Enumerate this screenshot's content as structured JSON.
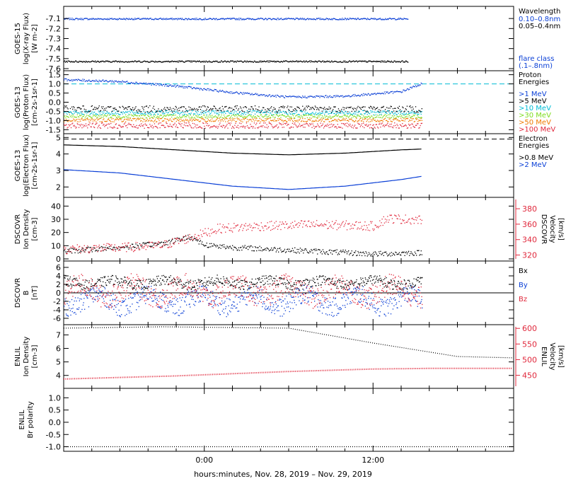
{
  "figure": {
    "xlabel": "hours:minutes, Nov. 28, 2019 – Nov. 29, 2019",
    "x_ticks": [
      "0:00",
      "12:00"
    ]
  },
  "colors": {
    "black": "#000000",
    "blue": "#0a3fd6",
    "cyan": "#00bcd4",
    "green": "#7ddc1f",
    "yellow": "#e8c000",
    "orange": "#f07a00",
    "red": "#e0283c"
  },
  "chart_data": [
    {
      "type": "scatter",
      "panel": "goes15-xray",
      "ylabel_lines": [
        "GOES-15",
        "log(X-ray Flux)",
        "[W m-2]"
      ],
      "yticks": [
        "-7.1",
        "-7.2",
        "-7.3",
        "-7.4",
        "-7.5",
        "-7.6"
      ],
      "ylim": [
        -7.6,
        -7.0
      ],
      "legend_title": "Wavelength",
      "series": [
        {
          "name": "0.10–0.8nm",
          "color": "blue",
          "x_range_h": [
            -10,
            14.5
          ],
          "y_mean": -7.1,
          "noise": 0.008
        },
        {
          "name": "0.05–0.4nm",
          "color": "black",
          "x_range_h": [
            -10,
            14.5
          ],
          "y_mean": -7.525,
          "noise": 0.008
        }
      ],
      "right_note_lines": [
        "flare class",
        "(.1–.8nm)"
      ]
    },
    {
      "type": "scatter",
      "panel": "goes13-proton",
      "ylabel_lines": [
        "GOES-13",
        "log(Proton Flux)",
        "[cm-2s-1sr-1]"
      ],
      "yticks": [
        "1.5",
        "1.0",
        "0.5",
        "0.0",
        "-0.5",
        "-1.0",
        "-1.5"
      ],
      "ylim": [
        -1.6,
        1.6
      ],
      "legend_title_lines": [
        "Proton",
        "Energies"
      ],
      "threshold": 1.0,
      "series": [
        {
          "name": ">1 MeV",
          "color": "blue",
          "x": [
            -10,
            -6,
            -2,
            2,
            6,
            10,
            14,
            15.5
          ],
          "y": [
            1.25,
            1.15,
            0.9,
            0.55,
            0.3,
            0.35,
            0.6,
            1.05
          ]
        },
        {
          "name": ">5 MeV",
          "color": "black",
          "x_range_h": [
            -10,
            15.5
          ],
          "y_mean": -0.35,
          "noise": 0.18
        },
        {
          "name": ">10 MeV",
          "color": "cyan",
          "x_range_h": [
            -10,
            15.5
          ],
          "y_mean": -0.55,
          "noise": 0.12
        },
        {
          "name": ">30 MeV",
          "color": "green",
          "x_range_h": [
            -10,
            15.5
          ],
          "y_mean": -0.75,
          "noise": 0.1
        },
        {
          "name": ">50 MeV",
          "color": "orange",
          "x_range_h": [
            -10,
            15.5
          ],
          "y_mean": -0.95,
          "noise": 0.1
        },
        {
          "name": ">100 MeV",
          "color": "red",
          "x_range_h": [
            -10,
            15.5
          ],
          "y_mean": -1.25,
          "noise": 0.15
        }
      ]
    },
    {
      "type": "line",
      "panel": "goes13-electron",
      "ylabel_lines": [
        "GOES-13",
        "log(Electron Flux)",
        "[cm-2s-1sr-1]"
      ],
      "yticks": [
        "5",
        "4",
        "3",
        "2"
      ],
      "ylim": [
        1.5,
        5.1
      ],
      "legend_title_lines": [
        "Electron",
        "Energies"
      ],
      "threshold": 4.9,
      "series": [
        {
          "name": ">0.8 MeV",
          "color": "black",
          "x": [
            -10,
            -6,
            -2,
            2,
            6,
            10,
            14,
            15.5
          ],
          "y": [
            4.55,
            4.45,
            4.25,
            4.05,
            3.95,
            4.05,
            4.25,
            4.3
          ]
        },
        {
          "name": ">2 MeV",
          "color": "blue",
          "x": [
            -10,
            -6,
            -2,
            2,
            6,
            10,
            14,
            15.5
          ],
          "y": [
            3.05,
            2.85,
            2.45,
            2.05,
            1.85,
            2.05,
            2.45,
            2.65
          ]
        }
      ]
    },
    {
      "type": "scatter",
      "panel": "dscovr-plasma",
      "ylabel_lines": [
        "DSCOVR",
        "Ion Density",
        "[cm-3]"
      ],
      "yticks": [
        "40",
        "30",
        "20",
        "10",
        "0"
      ],
      "ylim": [
        0,
        45
      ],
      "right_label_lines": [
        "DSCOVR",
        "Velocity",
        "[km/s]"
      ],
      "right_yticks": [
        "380",
        "360",
        "340",
        "320"
      ],
      "right_ylim": [
        315,
        392
      ],
      "series": [
        {
          "name": "Ion Density",
          "axis": "left",
          "color": "black",
          "x": [
            -10,
            -6,
            -3,
            -1,
            0,
            2,
            4,
            8,
            12,
            15.5
          ],
          "y": [
            6,
            9,
            12,
            17,
            11,
            9,
            8,
            6,
            4,
            5
          ],
          "noise": 2.0
        },
        {
          "name": "Velocity",
          "axis": "right",
          "color": "red",
          "x": [
            -10,
            -6,
            -3,
            -1,
            1,
            4,
            8,
            12,
            13,
            15.5
          ],
          "y": [
            328,
            330,
            333,
            343,
            355,
            358,
            360,
            358,
            368,
            366
          ],
          "noise": 6
        }
      ]
    },
    {
      "type": "scatter",
      "panel": "dscovr-b",
      "ylabel_lines": [
        "DSCOVR",
        "B",
        "[nT]"
      ],
      "yticks": [
        "6",
        "4",
        "2",
        "0",
        "-2",
        "-4",
        "-6"
      ],
      "ylim": [
        -7,
        7
      ],
      "zero_line": true,
      "series": [
        {
          "name": "Bx",
          "color": "black",
          "x_range_h": [
            -10,
            15.5
          ],
          "y_mean": 2.5,
          "noise": 1.2
        },
        {
          "name": "By",
          "color": "blue",
          "x_range_h": [
            -10,
            15.5
          ],
          "y_mean": -1.8,
          "noise": 2.2
        },
        {
          "name": "Bz",
          "color": "red",
          "x_range_h": [
            -10,
            15.5
          ],
          "y_mean": 0.5,
          "noise": 2.6
        }
      ]
    },
    {
      "type": "line",
      "panel": "enlil-plasma",
      "ylabel_lines": [
        "ENLIL",
        "Ion Density",
        "[cm-3]"
      ],
      "yticks": [
        "7",
        "6",
        "5",
        "4"
      ],
      "ylim": [
        3.2,
        7.6
      ],
      "right_label_lines": [
        "ENLIL",
        "Velocity",
        "[km/s]"
      ],
      "right_yticks": [
        "600",
        "550",
        "500",
        "450"
      ],
      "right_ylim": [
        415,
        605
      ],
      "series": [
        {
          "name": "Ion Density",
          "axis": "left",
          "color": "black",
          "x": [
            -10,
            -3,
            6,
            12,
            18,
            22
          ],
          "y": [
            7.5,
            7.6,
            7.5,
            6.4,
            5.4,
            5.3
          ]
        },
        {
          "name": "Velocity",
          "axis": "right",
          "color": "red",
          "x": [
            -10,
            -2,
            6,
            12,
            16,
            22
          ],
          "y": [
            438,
            448,
            462,
            470,
            472,
            472
          ]
        }
      ]
    },
    {
      "type": "line",
      "panel": "enlil-polarity",
      "ylabel_lines": [
        "ENLIL",
        "Br polarity"
      ],
      "yticks": [
        "1.0",
        "0.5",
        "0.0",
        "-0.5",
        "-1.0"
      ],
      "ylim": [
        -1.1,
        1.3
      ],
      "series": [
        {
          "name": "Br polarity",
          "color": "black",
          "x": [
            -10,
            22
          ],
          "y": [
            -1.0,
            -1.0
          ]
        }
      ]
    }
  ]
}
